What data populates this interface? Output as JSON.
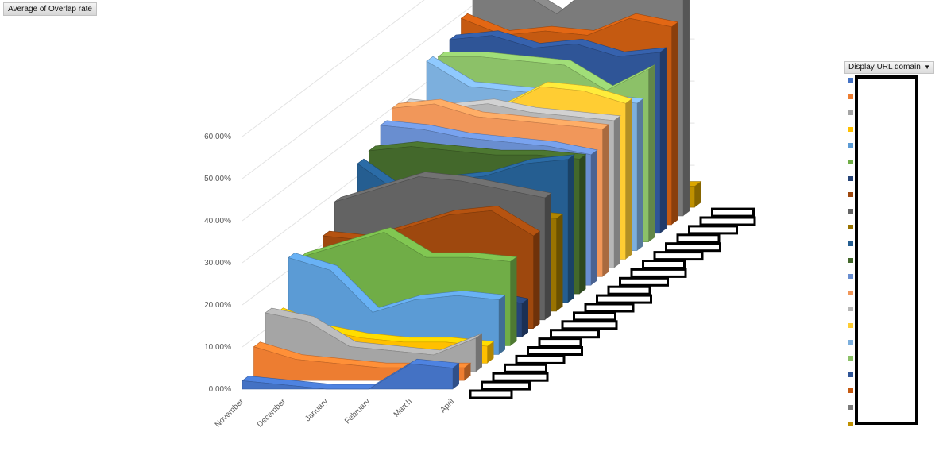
{
  "pivot_field": {
    "label": "Average of Overlap rate"
  },
  "legend": {
    "field_label": "Display URL domain"
  },
  "chart_data": {
    "type": "area",
    "subtype": "3d-area",
    "title": "",
    "xlabel": "",
    "ylabel": "",
    "categories": [
      "November",
      "December",
      "January",
      "February",
      "March",
      "April"
    ],
    "y_ticks": [
      "0.00%",
      "10.00%",
      "20.00%",
      "30.00%",
      "40.00%",
      "50.00%",
      "60.00%"
    ],
    "ylim": [
      0,
      0.6
    ],
    "grid": true,
    "legend_position": "right",
    "series": [
      {
        "color": "#4472c4",
        "values": [
          0.02,
          0.01,
          0.0,
          0.0,
          0.06,
          0.05
        ]
      },
      {
        "color": "#ed7d31",
        "values": [
          0.08,
          0.05,
          0.04,
          0.03,
          0.03,
          0.03
        ]
      },
      {
        "color": "#a5a5a5",
        "values": [
          0.14,
          0.12,
          0.06,
          0.05,
          0.04,
          0.08
        ]
      },
      {
        "color": "#ffc000",
        "values": [
          0.12,
          0.08,
          0.06,
          0.05,
          0.05,
          0.04
        ]
      },
      {
        "color": "#5b9bd5",
        "values": [
          0.23,
          0.2,
          0.1,
          0.13,
          0.14,
          0.13
        ]
      },
      {
        "color": "#70ad47",
        "values": [
          0.21,
          0.24,
          0.27,
          0.21,
          0.21,
          0.2
        ]
      },
      {
        "color": "#264478",
        "values": [
          0.1,
          0.09,
          0.11,
          0.1,
          0.1,
          0.08
        ]
      },
      {
        "color": "#9e480e",
        "values": [
          0.22,
          0.21,
          0.24,
          0.27,
          0.28,
          0.22
        ]
      },
      {
        "color": "#636363",
        "values": [
          0.28,
          0.31,
          0.34,
          0.33,
          0.31,
          0.29
        ]
      },
      {
        "color": "#997300",
        "values": [
          0.22,
          0.21,
          0.2,
          0.21,
          0.23,
          0.22
        ]
      },
      {
        "color": "#255e91",
        "values": [
          0.33,
          0.26,
          0.29,
          0.3,
          0.33,
          0.34
        ]
      },
      {
        "color": "#43682b",
        "values": [
          0.34,
          0.35,
          0.34,
          0.33,
          0.33,
          0.32
        ]
      },
      {
        "color": "#698ed0",
        "values": [
          0.38,
          0.37,
          0.35,
          0.34,
          0.33,
          0.31
        ]
      },
      {
        "color": "#f1975a",
        "values": [
          0.4,
          0.41,
          0.38,
          0.37,
          0.36,
          0.35
        ]
      },
      {
        "color": "#b7b7b7",
        "values": [
          0.39,
          0.38,
          0.39,
          0.37,
          0.36,
          0.35
        ]
      },
      {
        "color": "#ffcd33",
        "values": [
          0.36,
          0.35,
          0.36,
          0.41,
          0.4,
          0.37
        ]
      },
      {
        "color": "#7cafdd",
        "values": [
          0.45,
          0.39,
          0.38,
          0.37,
          0.36,
          0.35
        ]
      },
      {
        "color": "#8cc168",
        "values": [
          0.44,
          0.44,
          0.43,
          0.42,
          0.36,
          0.41
        ]
      },
      {
        "color": "#2f5597",
        "values": [
          0.46,
          0.47,
          0.44,
          0.45,
          0.42,
          0.43
        ]
      },
      {
        "color": "#c55a11",
        "values": [
          0.49,
          0.45,
          0.46,
          0.45,
          0.49,
          0.47
        ]
      },
      {
        "color": "#7b7b7b",
        "values": [
          0.52,
          0.54,
          0.48,
          0.56,
          0.56,
          0.66
        ]
      },
      {
        "color": "#bf9000",
        "values": [
          0.05,
          0.05,
          0.04,
          0.04,
          0.05,
          0.05
        ]
      }
    ]
  }
}
